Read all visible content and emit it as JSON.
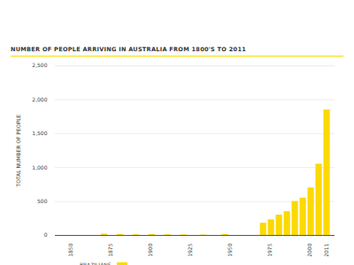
{
  "chart_data": {
    "type": "bar",
    "title": "NUMBER OF PEOPLE ARRIVING IN AUSTRALIA FROM 1800'S TO 2011",
    "y_label": "TOTAL NUMBER OF PEOPLE",
    "x": [
      1871,
      1881,
      1891,
      1901,
      1911,
      1921,
      1933,
      1947,
      1971,
      1976,
      1981,
      1986,
      1991,
      1996,
      2001,
      2006,
      2011
    ],
    "series": [
      {
        "name": "BRAZILIANS",
        "color": "#fcd900",
        "values": [
          20,
          15,
          10,
          15,
          10,
          8,
          6,
          15,
          180,
          230,
          300,
          350,
          500,
          550,
          700,
          1050,
          1850
        ]
      }
    ],
    "xlim": [
      1840,
      2016
    ],
    "xticks": [
      1850,
      1875,
      1900,
      1925,
      1950,
      1975,
      2000,
      2011
    ],
    "ylim": [
      0,
      2500
    ],
    "yticks": [
      0,
      500,
      {
        "value": 1000,
        "label": "1,000"
      },
      {
        "value": 1500,
        "label": "1,500"
      },
      {
        "value": 2000,
        "label": "2,000"
      },
      {
        "value": 2500,
        "label": "2,500"
      }
    ],
    "grid": true
  }
}
